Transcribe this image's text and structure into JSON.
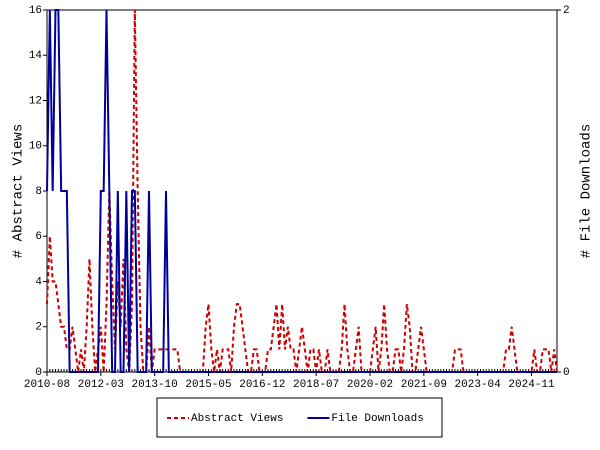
{
  "chart_data": {
    "type": "line",
    "x": [
      "2010-08",
      "2010-09",
      "2010-10",
      "2010-11",
      "2010-12",
      "2011-01",
      "2011-02",
      "2011-03",
      "2011-04",
      "2011-05",
      "2011-06",
      "2011-07",
      "2011-08",
      "2011-09",
      "2011-10",
      "2011-11",
      "2011-12",
      "2012-01",
      "2012-02",
      "2012-03",
      "2012-04",
      "2012-05",
      "2012-06",
      "2012-07",
      "2012-08",
      "2012-09",
      "2012-10",
      "2012-11",
      "2012-12",
      "2013-01",
      "2013-02",
      "2013-03",
      "2013-04",
      "2013-05",
      "2013-06",
      "2013-07",
      "2013-08",
      "2013-09",
      "2013-10",
      "2013-11",
      "2013-12",
      "2014-01",
      "2014-02",
      "2014-03",
      "2014-04",
      "2014-05",
      "2014-06",
      "2014-07",
      "2014-08",
      "2014-09",
      "2014-10",
      "2014-11",
      "2014-12",
      "2015-01",
      "2015-02",
      "2015-03",
      "2015-04",
      "2015-05",
      "2015-06",
      "2015-07",
      "2015-08",
      "2015-09",
      "2015-10",
      "2015-11",
      "2015-12",
      "2016-01",
      "2016-02",
      "2016-03",
      "2016-04",
      "2016-05",
      "2016-06",
      "2016-07",
      "2016-08",
      "2016-09",
      "2016-10",
      "2016-11",
      "2016-12",
      "2017-01",
      "2017-02",
      "2017-03",
      "2017-04",
      "2017-05",
      "2017-06",
      "2017-07",
      "2017-08",
      "2017-09",
      "2017-10",
      "2017-11",
      "2017-12",
      "2018-01",
      "2018-02",
      "2018-03",
      "2018-04",
      "2018-05",
      "2018-06",
      "2018-07",
      "2018-08",
      "2018-09",
      "2018-10",
      "2018-11",
      "2018-12",
      "2019-01",
      "2019-02",
      "2019-03",
      "2019-04",
      "2019-05",
      "2019-06",
      "2019-07",
      "2019-08",
      "2019-09",
      "2019-10",
      "2019-11",
      "2019-12",
      "2020-01",
      "2020-02",
      "2020-03",
      "2020-04",
      "2020-05",
      "2020-06",
      "2020-07",
      "2020-08",
      "2020-09",
      "2020-10",
      "2020-11",
      "2020-12",
      "2021-01",
      "2021-02",
      "2021-03",
      "2021-04",
      "2021-05",
      "2021-06",
      "2021-07",
      "2021-08",
      "2021-09",
      "2021-10",
      "2021-11",
      "2021-12",
      "2022-01",
      "2022-02",
      "2022-03",
      "2022-04",
      "2022-05",
      "2022-06",
      "2022-07",
      "2022-08",
      "2022-09",
      "2022-10",
      "2022-11",
      "2022-12",
      "2023-01",
      "2023-02",
      "2023-03",
      "2023-04",
      "2023-05",
      "2023-06",
      "2023-07",
      "2023-08",
      "2023-09",
      "2023-10",
      "2023-11",
      "2023-12",
      "2024-01",
      "2024-02",
      "2024-03",
      "2024-04",
      "2024-05",
      "2024-06",
      "2024-07",
      "2024-08",
      "2024-09",
      "2024-10",
      "2024-11",
      "2024-12",
      "2025-01",
      "2025-02",
      "2025-03",
      "2025-04",
      "2025-05",
      "2025-06",
      "2025-07",
      "2025-08"
    ],
    "xticks": [
      "2010-08",
      "2012-03",
      "2013-10",
      "2015-05",
      "2016-12",
      "2018-07",
      "2020-02",
      "2021-09",
      "2023-04",
      "2024-11"
    ],
    "ylabel": "# Abstract Views",
    "y2label": "# File Downloads",
    "ylim": [
      0,
      16
    ],
    "yticks": [
      0,
      2,
      4,
      6,
      8,
      10,
      12,
      14,
      16
    ],
    "y2lim": [
      0,
      2
    ],
    "y2ticks": [
      0,
      2
    ],
    "legend": "bottom",
    "series": [
      {
        "name": "Abstract Views",
        "color": "#cc0000",
        "dash": true,
        "values": [
          3,
          6,
          4,
          4,
          3,
          2,
          2,
          1,
          1,
          2,
          1,
          0,
          1,
          0,
          2,
          5,
          2,
          0,
          1,
          2,
          0,
          3,
          8,
          4,
          1,
          4,
          2,
          5,
          1,
          0,
          3,
          16,
          8,
          2,
          0,
          0,
          2,
          0,
          1,
          1,
          1,
          1,
          1,
          1,
          1,
          1,
          1,
          0,
          0,
          0,
          0,
          0,
          0,
          0,
          0,
          0,
          2,
          3,
          1,
          0,
          1,
          0,
          1,
          1,
          1,
          0,
          2,
          3,
          3,
          2,
          1,
          0,
          0,
          1,
          1,
          0,
          0,
          0,
          1,
          1,
          2,
          3,
          1,
          3,
          1,
          2,
          1,
          1,
          0,
          1,
          2,
          1,
          0,
          1,
          1,
          0,
          1,
          0,
          0,
          1,
          0,
          0,
          0,
          0,
          1,
          3,
          1,
          0,
          0,
          1,
          2,
          0,
          0,
          0,
          0,
          1,
          2,
          0,
          1,
          3,
          1,
          0,
          0,
          1,
          1,
          0,
          1,
          3,
          2,
          0,
          0,
          1,
          2,
          1,
          0,
          0,
          0,
          0,
          0,
          0,
          0,
          0,
          0,
          0,
          1,
          1,
          1,
          0,
          0,
          0,
          0,
          0,
          0,
          0,
          0,
          0,
          0,
          0,
          0,
          0,
          0,
          0,
          1,
          1,
          2,
          1,
          0,
          0,
          0,
          0,
          0,
          0,
          1,
          0,
          0,
          1,
          1,
          1,
          0,
          1,
          0
        ]
      },
      {
        "name": "File Downloads",
        "color": "#000099",
        "dash": false,
        "axis": "y2",
        "values": [
          1,
          2,
          1,
          2,
          2,
          1,
          1,
          1,
          0,
          0,
          0,
          0,
          0,
          0,
          0,
          0,
          0,
          0,
          0,
          1,
          1,
          2,
          1,
          0,
          0,
          1,
          0,
          0,
          1,
          0,
          1,
          1,
          0,
          0,
          0,
          0,
          1,
          0,
          0,
          0,
          0,
          0,
          1,
          0,
          0,
          0,
          0,
          0,
          0,
          0,
          0,
          0,
          0,
          0,
          0,
          0,
          0,
          0,
          0,
          0,
          0,
          0,
          0,
          0,
          0,
          0,
          0,
          0,
          0,
          0,
          0,
          0,
          0,
          0,
          0,
          0,
          0,
          0,
          0,
          0,
          0,
          0,
          0,
          0,
          0,
          0,
          0,
          0,
          0,
          0,
          0,
          0,
          0,
          0,
          0,
          0,
          0,
          0,
          0,
          0,
          0,
          0,
          0,
          0,
          0,
          0,
          0,
          0,
          0,
          0,
          0,
          0,
          0,
          0,
          0,
          0,
          0,
          0,
          0,
          0,
          0,
          0,
          0,
          0,
          0,
          0,
          0,
          0,
          0,
          0,
          0,
          0,
          0,
          0,
          0,
          0,
          0,
          0,
          0,
          0,
          0,
          0,
          0,
          0,
          0,
          0,
          0,
          0,
          0,
          0,
          0,
          0,
          0,
          0,
          0,
          0,
          0,
          0,
          0,
          0,
          0,
          0,
          0,
          0,
          0,
          0,
          0,
          0,
          0,
          0,
          0,
          0,
          0,
          0,
          0,
          0,
          0,
          0,
          0,
          0,
          0
        ]
      }
    ]
  }
}
